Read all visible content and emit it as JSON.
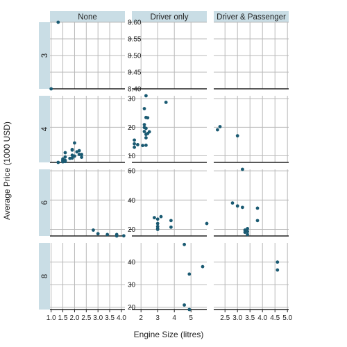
{
  "chart_data": {
    "type": "scatter",
    "xlabel": "Engine Size (litres)",
    "ylabel": "Average Price (1000 USD)",
    "columns": [
      "None",
      "Driver only",
      "Driver & Passenger"
    ],
    "rows": [
      "3",
      "4",
      "6",
      "8"
    ],
    "grid": true,
    "point_color": "#1a5a72",
    "strip_color": "#c9dde5",
    "x_axes": [
      {
        "range": [
          0.95,
          4.15
        ],
        "ticks": [
          1.0,
          1.5,
          2.0,
          2.5,
          3.0,
          3.5,
          4.0
        ],
        "labels": [
          "1.0",
          "1.5",
          "2.0",
          "2.5",
          "3.0",
          "3.5",
          "4.0"
        ]
      },
      {
        "range": [
          1.45,
          5.95
        ],
        "ticks": [
          2,
          3,
          4,
          5
        ],
        "labels": [
          "2",
          "3",
          "4",
          "5"
        ]
      },
      {
        "range": [
          2.05,
          5.05
        ],
        "ticks": [
          2.5,
          3.0,
          3.5,
          4.0,
          4.5,
          5.0
        ],
        "labels": [
          "2.5",
          "3.0",
          "3.5",
          "4.0",
          "4.5",
          "5.0"
        ]
      }
    ],
    "y_axes": {
      "3": {
        "range": [
          8.4,
          8.6
        ],
        "ticks": [
          8.45,
          8.5,
          8.55,
          8.6
        ],
        "labels": [
          "8.45",
          "8.50",
          "8.55",
          "8.60"
        ],
        "bottom_label": "8.40"
      },
      "4": {
        "range": [
          7.7,
          31
        ],
        "ticks": [
          10,
          20,
          30
        ],
        "labels": [
          "10",
          "20",
          "30"
        ]
      },
      "6": {
        "range": [
          15.5,
          61
        ],
        "ticks": [
          20,
          40,
          60
        ],
        "labels": [
          "20",
          "40",
          "60"
        ]
      },
      "8": {
        "range": [
          19,
          48.5
        ],
        "ticks": [
          20,
          30,
          40
        ],
        "labels": [
          "20",
          "30",
          "40"
        ]
      }
    },
    "panels": [
      {
        "row": "3",
        "col": "None",
        "points": [
          [
            1.3,
            8.6
          ],
          [
            1.0,
            8.4
          ]
        ]
      },
      {
        "row": "3",
        "col": "Driver only",
        "points": []
      },
      {
        "row": "3",
        "col": "Driver & Passenger",
        "points": []
      },
      {
        "row": "4",
        "col": "None",
        "points": [
          [
            2.0,
            14.5
          ],
          [
            1.9,
            12.2
          ],
          [
            1.9,
            12.0
          ],
          [
            2.2,
            11.8
          ],
          [
            2.1,
            11.4
          ],
          [
            1.6,
            11.1
          ],
          [
            2.2,
            10.5
          ],
          [
            2.3,
            10.5
          ],
          [
            1.9,
            10.2
          ],
          [
            2.0,
            9.9
          ],
          [
            1.6,
            9.6
          ],
          [
            2.3,
            9.5
          ],
          [
            1.9,
            9.2
          ],
          [
            1.8,
            9.1
          ],
          [
            1.5,
            8.9
          ],
          [
            1.5,
            8.6
          ],
          [
            1.6,
            8.4
          ],
          [
            1.5,
            8.3
          ],
          [
            1.5,
            8.2
          ],
          [
            1.6,
            8.0
          ],
          [
            1.5,
            7.9
          ],
          [
            1.3,
            7.4
          ]
        ]
      },
      {
        "row": "4",
        "col": "Driver only",
        "points": [
          [
            2.3,
            31.9
          ],
          [
            3.5,
            28.7
          ],
          [
            2.2,
            26.5
          ],
          [
            2.3,
            23.4
          ],
          [
            2.4,
            23.3
          ],
          [
            2.2,
            20.9
          ],
          [
            2.2,
            19.9
          ],
          [
            2.3,
            19.6
          ],
          [
            2.2,
            18.5
          ],
          [
            2.5,
            18.4
          ],
          [
            2.4,
            17.8
          ],
          [
            2.3,
            17.5
          ],
          [
            2.3,
            16.3
          ],
          [
            1.6,
            15.5
          ],
          [
            1.6,
            14.2
          ],
          [
            1.8,
            13.9
          ],
          [
            2.3,
            13.7
          ],
          [
            2.1,
            13.6
          ],
          [
            1.6,
            13.0
          ]
        ]
      },
      {
        "row": "4",
        "col": "Driver & Passenger",
        "points": [
          [
            2.2,
            19.1
          ],
          [
            2.3,
            20.2
          ],
          [
            3.0,
            17.0
          ]
        ]
      },
      {
        "row": "6",
        "col": "None",
        "points": [
          [
            2.8,
            19.5
          ],
          [
            3.0,
            17.0
          ],
          [
            3.4,
            16.5
          ],
          [
            3.8,
            16.5
          ],
          [
            3.8,
            15.5
          ],
          [
            4.1,
            15.6
          ]
        ]
      },
      {
        "row": "6",
        "col": "Driver only",
        "points": [
          [
            2.8,
            28.0
          ],
          [
            3.0,
            27.0
          ],
          [
            3.2,
            28.7
          ],
          [
            3.8,
            26.0
          ],
          [
            3.0,
            24.0
          ],
          [
            3.0,
            22.0
          ],
          [
            3.8,
            21.5
          ],
          [
            3.0,
            20.5
          ],
          [
            3.0,
            20.0
          ],
          [
            6.0,
            24.0
          ]
        ]
      },
      {
        "row": "6",
        "col": "Driver & Passenger",
        "points": [
          [
            3.2,
            61.0
          ],
          [
            2.8,
            38.0
          ],
          [
            3.0,
            36.0
          ],
          [
            3.2,
            35.0
          ],
          [
            3.8,
            34.5
          ],
          [
            3.8,
            26.0
          ],
          [
            3.4,
            20.5
          ],
          [
            3.3,
            19.5
          ],
          [
            3.4,
            18.5
          ],
          [
            3.3,
            18.0
          ],
          [
            3.4,
            16.5
          ]
        ]
      },
      {
        "row": "8",
        "col": "None",
        "points": []
      },
      {
        "row": "8",
        "col": "Driver only",
        "points": [
          [
            4.6,
            47.8
          ],
          [
            5.7,
            38.0
          ],
          [
            4.9,
            34.7
          ],
          [
            4.6,
            21.0
          ],
          [
            4.9,
            19.0
          ]
        ]
      },
      {
        "row": "8",
        "col": "Driver & Passenger",
        "points": [
          [
            4.6,
            40.0
          ],
          [
            4.6,
            36.5
          ]
        ]
      }
    ]
  }
}
